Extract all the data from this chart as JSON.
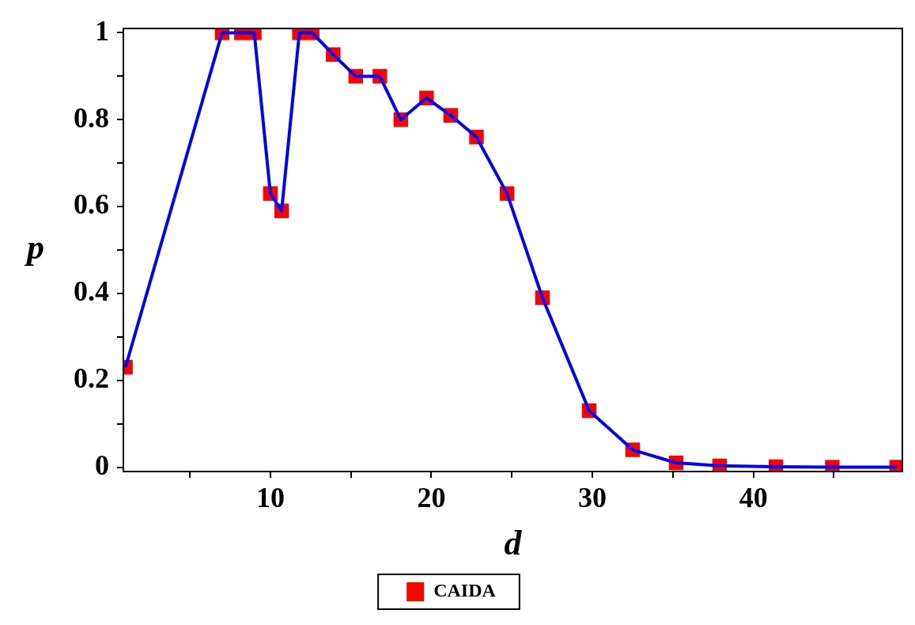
{
  "chart_data": {
    "type": "line",
    "xlabel": "d",
    "ylabel": "p",
    "xlim": [
      0.87,
      49.25
    ],
    "ylim": [
      -0.01,
      1.01
    ],
    "xticks": [
      {
        "value": 5,
        "label": null
      },
      10,
      {
        "value": 15,
        "label": null
      },
      20,
      {
        "value": 25,
        "label": null
      },
      30,
      {
        "value": 35,
        "label": null
      },
      40,
      {
        "value": 45,
        "label": null
      }
    ],
    "yticks": [
      0,
      {
        "value": 0.1,
        "label": null
      },
      0.2,
      {
        "value": 0.3,
        "label": null
      },
      0.4,
      {
        "value": 0.5,
        "label": null
      },
      0.6,
      {
        "value": 0.7,
        "label": null
      },
      0.8,
      {
        "value": 0.9,
        "label": null
      },
      1
    ],
    "legend": "bottom",
    "series": [
      {
        "name": "CAIDA",
        "type": "scatter",
        "marker": "square",
        "color": "#ff0000",
        "x": [
          1,
          7,
          8.2,
          9,
          10,
          10.7,
          11.8,
          12.6,
          13.9,
          15.3,
          16.8,
          18.1,
          19.7,
          21.2,
          22.8,
          24.7,
          26.9,
          29.8,
          32.5,
          35.2,
          37.9,
          41.4,
          44.9,
          48.9
        ],
        "values": [
          0.23,
          1,
          1,
          1,
          0.63,
          0.59,
          1,
          1,
          0.95,
          0.9,
          0.9,
          0.8,
          0.85,
          0.81,
          0.76,
          0.63,
          0.39,
          0.13,
          0.04,
          0.01,
          0.003,
          0.001,
          0,
          0
        ]
      },
      {
        "marker": "none",
        "line_style": "solid",
        "color": "#0000ff",
        "x": [
          1,
          7,
          8.2,
          9,
          10,
          10.7,
          11.8,
          12.6,
          13.9,
          15.3,
          16.8,
          18.1,
          19.7,
          21.2,
          22.8,
          24.7,
          26.9,
          29.8,
          32.5,
          35.2,
          37.9,
          41.4,
          44.9,
          48.9
        ],
        "values": [
          0.23,
          1,
          1,
          1,
          0.63,
          0.59,
          1,
          1,
          0.95,
          0.9,
          0.9,
          0.8,
          0.85,
          0.81,
          0.76,
          0.63,
          0.39,
          0.13,
          0.04,
          0.01,
          0.003,
          0.001,
          0,
          0
        ]
      }
    ]
  }
}
